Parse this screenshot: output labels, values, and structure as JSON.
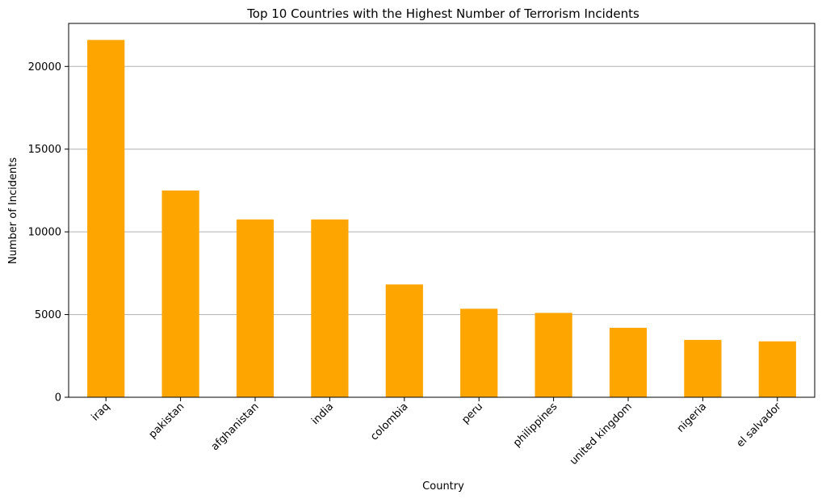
{
  "chart_data": {
    "type": "bar",
    "title": "Top 10 Countries with the Highest Number of Terrorism Incidents",
    "xlabel": "Country",
    "ylabel": "Number of Incidents",
    "categories": [
      "iraq",
      "pakistan",
      "afghanistan",
      "india",
      "colombia",
      "peru",
      "philippines",
      "united kingdom",
      "nigeria",
      "el salvador"
    ],
    "values": [
      21600,
      12500,
      10750,
      10750,
      6820,
      5350,
      5100,
      4200,
      3470,
      3380
    ],
    "ylim": [
      0,
      22600
    ],
    "yticks": [
      0,
      5000,
      10000,
      15000,
      20000
    ],
    "grid": "horizontal",
    "bar_color": "#ffa500",
    "grid_color": "#b0b0b0"
  }
}
